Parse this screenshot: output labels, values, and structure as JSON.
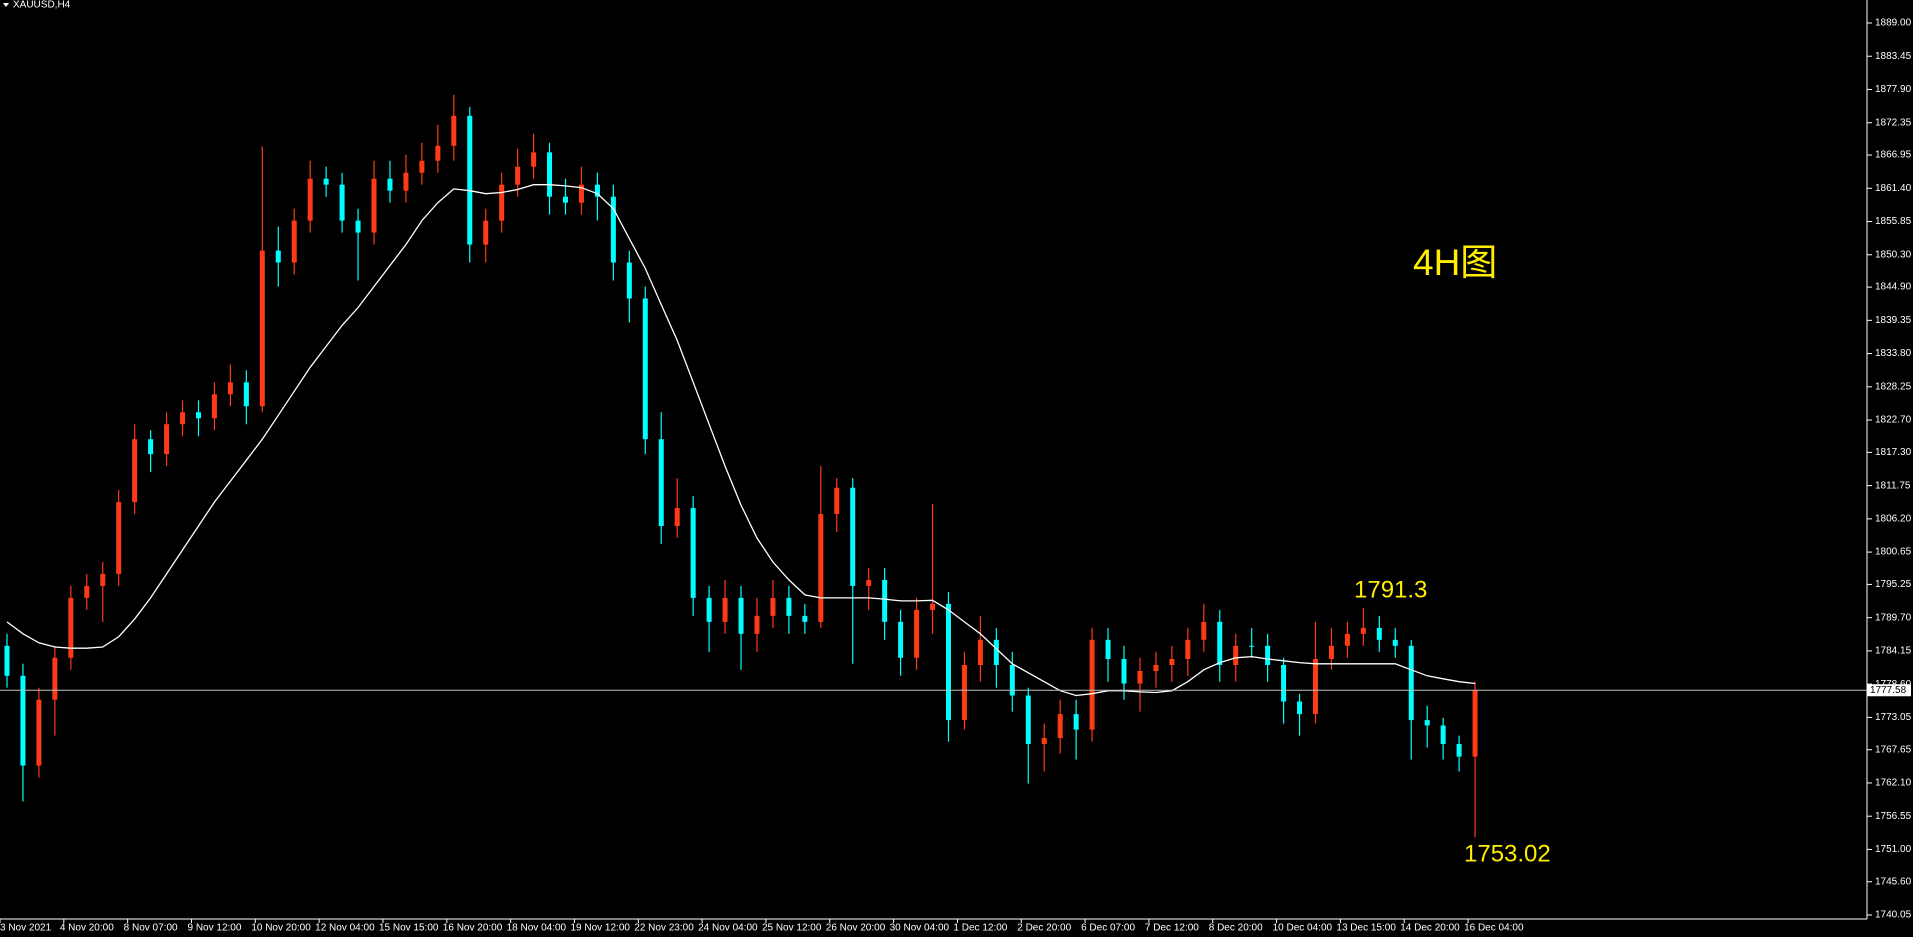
{
  "chart_data": {
    "type": "candlestick",
    "title": "XAUUSD,H4",
    "up_color": "#ff3a14",
    "down_color": "#00ffff",
    "open": [
      1785,
      1780,
      1765,
      1776,
      1783,
      1793,
      1795,
      1797,
      1809,
      1819.5,
      1817,
      1822,
      1824,
      1823,
      1827,
      1829,
      1825,
      1851,
      1849,
      1856,
      1863,
      1862,
      1856,
      1854,
      1863,
      1861,
      1864,
      1866,
      1868.5,
      1873.5,
      1852,
      1856,
      1862,
      1865,
      1867.4,
      1860,
      1859,
      1862,
      1860,
      1849,
      1843,
      1819.5,
      1805,
      1808,
      1793,
      1789,
      1793,
      1787,
      1790,
      1793,
      1790,
      1789,
      1807,
      1811.4,
      1795,
      1796,
      1789,
      1783,
      1791,
      1792,
      1772.6,
      1781.8,
      1786,
      1781.8,
      1776.7,
      1768.6,
      1769.6,
      1773.6,
      1771,
      1786,
      1782.8,
      1778.7,
      1780.8,
      1781.8,
      1782.8,
      1786,
      1789,
      1781.8,
      1785,
      1785,
      1781.8,
      1775.7,
      1773.6,
      1782.8,
      1785,
      1787,
      1788,
      1786,
      1785,
      1772.6,
      1771.7,
      1768.6,
      1766.5
    ],
    "high": [
      1787,
      1782,
      1778,
      1785,
      1795,
      1797,
      1799,
      1811,
      1822,
      1821,
      1824,
      1826,
      1826,
      1829,
      1832,
      1831,
      1868.4,
      1855,
      1858,
      1866,
      1865,
      1864,
      1858,
      1866,
      1866,
      1867,
      1869,
      1872,
      1877,
      1875,
      1858,
      1864,
      1868,
      1870.5,
      1869,
      1863,
      1865,
      1864,
      1862,
      1851,
      1845,
      1824,
      1813,
      1810,
      1795,
      1796,
      1795,
      1793,
      1796,
      1795,
      1792,
      1815,
      1813,
      1813,
      1798,
      1798,
      1791,
      1793,
      1808.7,
      1794,
      1784,
      1790,
      1788,
      1784,
      1778,
      1772,
      1776,
      1776,
      1788,
      1788,
      1785,
      1783,
      1784,
      1785,
      1788,
      1792,
      1791,
      1787,
      1788,
      1787,
      1783,
      1777,
      1789,
      1788,
      1789,
      1791.3,
      1790,
      1788,
      1786,
      1775,
      1773,
      1770,
      1779
    ],
    "low": [
      1778,
      1759,
      1763,
      1770,
      1781,
      1791,
      1789,
      1795,
      1807,
      1814,
      1815,
      1820,
      1820,
      1821,
      1825,
      1822,
      1824,
      1845,
      1847,
      1854,
      1860,
      1854,
      1846,
      1852,
      1859,
      1859,
      1862,
      1864,
      1866,
      1849,
      1849,
      1854,
      1860,
      1863,
      1857,
      1857,
      1857,
      1856,
      1846,
      1839,
      1817,
      1802,
      1803,
      1790,
      1784,
      1787,
      1781,
      1784,
      1788,
      1787,
      1787,
      1788,
      1804,
      1782,
      1791,
      1786,
      1780,
      1781,
      1787,
      1769,
      1771,
      1779,
      1778,
      1774,
      1762,
      1764,
      1767,
      1766,
      1769,
      1779,
      1776,
      1774,
      1778,
      1779,
      1780,
      1784,
      1779,
      1779,
      1783,
      1779,
      1772,
      1770,
      1772,
      1781,
      1783,
      1785,
      1784,
      1783,
      1766,
      1768,
      1766,
      1764,
      1753.02
    ],
    "close": [
      1780,
      1765,
      1776,
      1783,
      1793,
      1795,
      1797,
      1809,
      1819.5,
      1817,
      1822,
      1824,
      1823,
      1827,
      1829,
      1825,
      1851,
      1849,
      1856,
      1863,
      1862,
      1856,
      1854,
      1863,
      1861,
      1864,
      1866,
      1868.5,
      1873.5,
      1852,
      1856,
      1862,
      1865,
      1867.4,
      1860,
      1859,
      1862,
      1860,
      1849,
      1843,
      1819.5,
      1805,
      1808,
      1793,
      1789,
      1793,
      1787,
      1790,
      1793,
      1790,
      1789,
      1807,
      1811.4,
      1795,
      1796,
      1789,
      1783,
      1791,
      1792,
      1772.6,
      1781.8,
      1786,
      1781.8,
      1776.7,
      1768.6,
      1769.6,
      1773.6,
      1771,
      1786,
      1782.8,
      1778.7,
      1780.8,
      1781.8,
      1782.8,
      1786,
      1789,
      1781.8,
      1785,
      1785,
      1781.8,
      1775.7,
      1773.6,
      1782.8,
      1785,
      1787,
      1788,
      1786,
      1785,
      1772.6,
      1771.7,
      1768.6,
      1766.5,
      1777.6
    ],
    "ma": {
      "color": "#ffffff",
      "values": [
        1789,
        1787,
        1785.5,
        1784.8,
        1784.6,
        1784.6,
        1784.8,
        1786.5,
        1789.5,
        1793,
        1797,
        1801,
        1805,
        1809,
        1812.5,
        1816,
        1819.5,
        1823.5,
        1827.5,
        1831.5,
        1835,
        1838.5,
        1841.5,
        1845,
        1848.5,
        1852,
        1856,
        1859,
        1861.3,
        1861,
        1860.5,
        1860.7,
        1861.2,
        1862,
        1862,
        1861.8,
        1861.5,
        1860.5,
        1858,
        1853,
        1848,
        1842,
        1836,
        1829,
        1822,
        1815,
        1808.5,
        1803,
        1799,
        1796,
        1793.5,
        1793,
        1793,
        1793,
        1793,
        1792.8,
        1792.5,
        1792.5,
        1792.6,
        1791,
        1789,
        1787,
        1784.5,
        1782,
        1780.5,
        1779,
        1777.5,
        1776.7,
        1777,
        1777.5,
        1777.5,
        1777.3,
        1777.2,
        1777.5,
        1779,
        1781,
        1782.2,
        1783,
        1783.2,
        1782.8,
        1782.5,
        1782.2,
        1782,
        1782,
        1782,
        1782,
        1782,
        1782,
        1781,
        1780,
        1779.5,
        1779,
        1778.7
      ]
    },
    "last_price": 1777.58,
    "annotations": [
      "4H图",
      "1791.3",
      "1753.02"
    ],
    "xlim": [
      0,
      117
    ],
    "xticks": [
      {
        "value": 0,
        "label": "3 Nov 2021"
      },
      {
        "value": 4,
        "label": "4 Nov 20:00"
      },
      {
        "value": 8,
        "label": "8 Nov 07:00"
      },
      {
        "value": 12,
        "label": "9 Nov 12:00"
      },
      {
        "value": 16,
        "label": "10 Nov 20:00"
      },
      {
        "value": 20,
        "label": "12 Nov 04:00"
      },
      {
        "value": 24,
        "label": "15 Nov 15:00"
      },
      {
        "value": 28,
        "label": "16 Nov 20:00"
      },
      {
        "value": 32,
        "label": "18 Nov 04:00"
      },
      {
        "value": 36,
        "label": "19 Nov 12:00"
      },
      {
        "value": 40,
        "label": "22 Nov 23:00"
      },
      {
        "value": 44,
        "label": "24 Nov 04:00"
      },
      {
        "value": 48,
        "label": "25 Nov 12:00"
      },
      {
        "value": 52,
        "label": "26 Nov 20:00"
      },
      {
        "value": 56,
        "label": "30 Nov 04:00"
      },
      {
        "value": 60,
        "label": "1 Dec 12:00"
      },
      {
        "value": 64,
        "label": "2 Dec 20:00"
      },
      {
        "value": 68,
        "label": "6 Dec 07:00"
      },
      {
        "value": 72,
        "label": "7 Dec 12:00"
      },
      {
        "value": 76,
        "label": "8 Dec 20:00"
      },
      {
        "value": 80,
        "label": "10 Dec 04:00"
      },
      {
        "value": 84,
        "label": "13 Dec 15:00"
      },
      {
        "value": 88,
        "label": "14 Dec 20:00"
      },
      {
        "value": 92,
        "label": "16 Dec 04:00"
      }
    ],
    "ylim": [
      1740.05,
      1889
    ],
    "yticks": [
      {
        "value": 1889,
        "label": "1889.00"
      },
      1883.45,
      {
        "value": 1877.9,
        "label": "1877.90"
      },
      {
        "value": 1872.35,
        "label": "1872.35"
      },
      {
        "value": 1866.95,
        "label": "1866.95"
      },
      {
        "value": 1861.4,
        "label": "1861.40"
      },
      1855.85,
      {
        "value": 1850.3,
        "label": "1850.30"
      },
      {
        "value": 1844.9,
        "label": "1844.90"
      },
      1839.35,
      {
        "value": 1833.8,
        "label": "1833.80"
      },
      1828.25,
      {
        "value": 1822.7,
        "label": "1822.70"
      },
      {
        "value": 1817.3,
        "label": "1817.30"
      },
      1811.75,
      {
        "value": 1806.2,
        "label": "1806.20"
      },
      1800.65,
      1795.25,
      {
        "value": 1789.7,
        "label": "1789.70"
      },
      1784.15,
      {
        "value": 1778.6,
        "label": "1778.60"
      },
      1773.05,
      1767.65,
      {
        "value": 1762.1,
        "label": "1762.10"
      },
      1756.55,
      {
        "value": 1751,
        "label": "1751.00"
      },
      {
        "value": 1745.6,
        "label": "1745.60"
      },
      1740.05
    ]
  }
}
